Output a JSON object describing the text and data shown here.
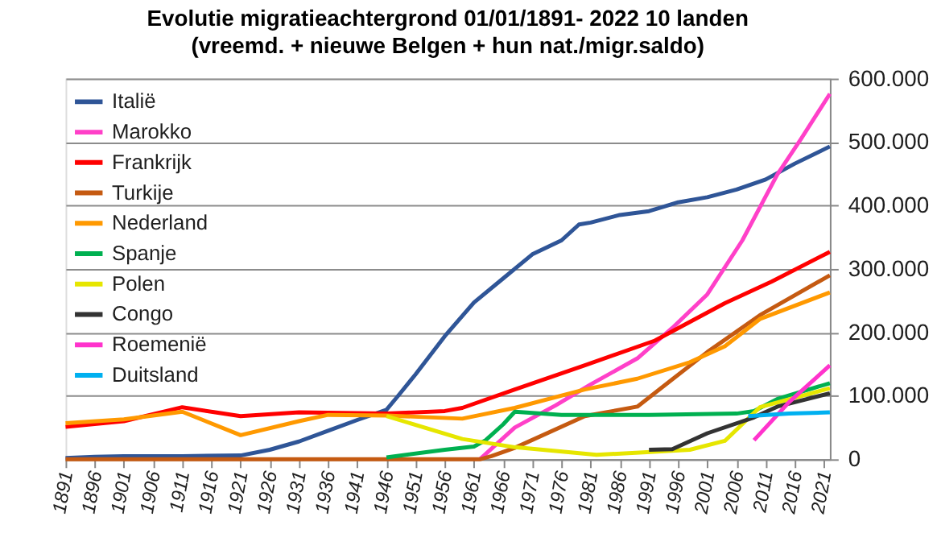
{
  "chart_data": {
    "type": "line",
    "title": "Evolutie migratieachtergrond 01/01/1891- 2022 10 landen",
    "subtitle": "(vreemd. + nieuwe Belgen + hun nat./migr.saldo)",
    "xlim": [
      1891,
      2022
    ],
    "xticks": [
      1891,
      1896,
      1901,
      1906,
      1911,
      1916,
      1921,
      1926,
      1931,
      1936,
      1941,
      1946,
      1951,
      1956,
      1961,
      1966,
      1971,
      1976,
      1981,
      1986,
      1991,
      1996,
      2001,
      2006,
      2011,
      2016,
      2021
    ],
    "ylim": [
      0,
      600000
    ],
    "yticks": [
      0,
      {
        "value": 100000,
        "label": "100.000"
      },
      {
        "value": 200000,
        "label": "200.000"
      },
      {
        "value": 300000,
        "label": "300.000"
      },
      {
        "value": 400000,
        "label": "400.000"
      },
      {
        "value": 500000,
        "label": "500.000"
      },
      {
        "value": 600000,
        "label": "600.000"
      }
    ],
    "grid": "y",
    "legend": "top left",
    "series": [
      {
        "name": "Italië",
        "color": "#2f5597",
        "x": [
          1891,
          1896,
          1901,
          1911,
          1921,
          1926,
          1931,
          1936,
          1941,
          1946,
          1948,
          1951,
          1956,
          1961,
          1966,
          1971,
          1976,
          1979,
          1981,
          1986,
          1991,
          1996,
          2001,
          2006,
          2011,
          2016,
          2022
        ],
        "values": [
          2000,
          4000,
          5000,
          5000,
          6000,
          15000,
          28000,
          45000,
          62000,
          78000,
          100000,
          134000,
          194000,
          247000,
          285000,
          323000,
          345000,
          370000,
          373000,
          385000,
          391000,
          405000,
          413000,
          425000,
          441000,
          466000,
          493000
        ]
      },
      {
        "name": "Marokko",
        "color": "#ff40c8",
        "x": [
          1962,
          1968,
          1975,
          1981,
          1989,
          1995,
          2001,
          2007,
          2013,
          2017,
          2022
        ],
        "values": [
          0,
          50000,
          85000,
          118000,
          159000,
          207000,
          260000,
          345000,
          449000,
          504000,
          576000
        ]
      },
      {
        "name": "Frankrijk",
        "color": "#ff0000",
        "x": [
          1891,
          1901,
          1911,
          1921,
          1931,
          1946,
          1956,
          1959,
          1968,
          1980,
          1992,
          2004,
          2012,
          2022
        ],
        "values": [
          51000,
          60000,
          82000,
          68000,
          74000,
          72000,
          76000,
          81000,
          110000,
          148000,
          187000,
          246000,
          280000,
          327000
        ]
      },
      {
        "name": "Turkije",
        "color": "#c55a11",
        "x": [
          1891,
          1962,
          1964,
          1968,
          1980,
          1989,
          1995,
          2001,
          2010,
          2022
        ],
        "values": [
          0,
          0,
          5000,
          18000,
          68000,
          83000,
          126000,
          169000,
          227000,
          290000
        ]
      },
      {
        "name": "Nederland",
        "color": "#ff9900",
        "x": [
          1891,
          1901,
          1911,
          1921,
          1931,
          1936,
          1946,
          1959,
          1968,
          1980,
          1989,
          1998,
          2004,
          2010,
          2022
        ],
        "values": [
          57000,
          63000,
          75000,
          38000,
          60000,
          70000,
          69000,
          64000,
          81000,
          110000,
          127000,
          153000,
          178000,
          221000,
          263000
        ]
      },
      {
        "name": "Spanje",
        "color": "#00b050",
        "x": [
          1946,
          1956,
          1961,
          1963,
          1966,
          1968,
          1976,
          1991,
          2006,
          2009,
          2013,
          2022
        ],
        "values": [
          3000,
          15000,
          20000,
          30000,
          55000,
          75000,
          70000,
          70000,
          72000,
          76000,
          95000,
          120000
        ]
      },
      {
        "name": "Polen",
        "color": "#e6e600",
        "x": [
          1946,
          1959,
          1968,
          1982,
          1990,
          1998,
          2004,
          2010,
          2022
        ],
        "values": [
          68000,
          32000,
          19000,
          7000,
          11000,
          15000,
          29000,
          82000,
          112000
        ]
      },
      {
        "name": "Congo",
        "color": "#333333",
        "x": [
          1991,
          1995,
          2001,
          2009,
          2013,
          2022
        ],
        "values": [
          15000,
          16000,
          41000,
          66000,
          83000,
          104000
        ]
      },
      {
        "name": "Roemenië",
        "color": "#ff33cc",
        "x": [
          2009,
          2015,
          2022
        ],
        "values": [
          30000,
          90000,
          148000
        ]
      },
      {
        "name": "Duitsland",
        "color": "#00b0f0",
        "x": [
          2008,
          2015,
          2022
        ],
        "values": [
          68000,
          72000,
          74000
        ]
      }
    ]
  }
}
